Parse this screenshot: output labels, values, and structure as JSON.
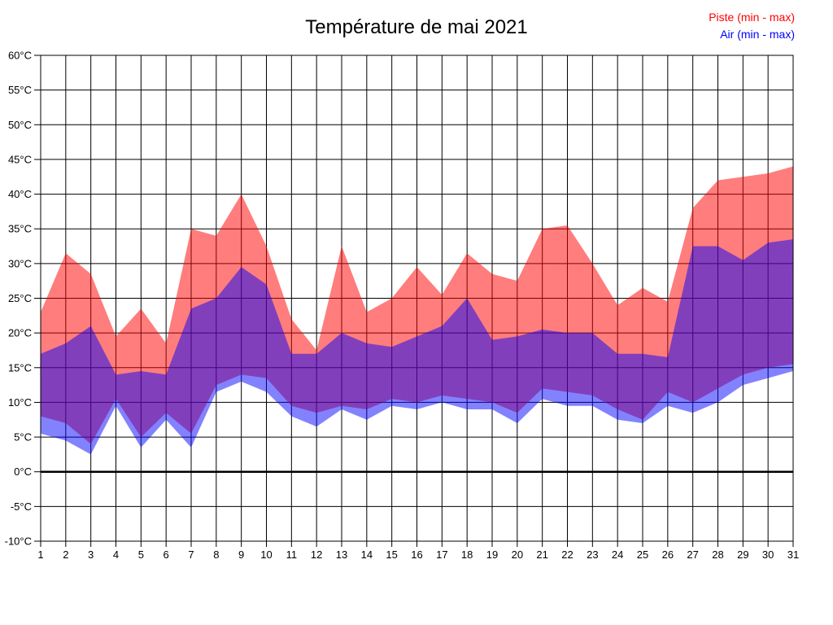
{
  "chart_data": {
    "type": "area",
    "title": "Température de mai 2021",
    "x": [
      1,
      2,
      3,
      4,
      5,
      6,
      7,
      8,
      9,
      10,
      11,
      12,
      13,
      14,
      15,
      16,
      17,
      18,
      19,
      20,
      21,
      22,
      23,
      24,
      25,
      26,
      27,
      28,
      29,
      30,
      31
    ],
    "ylim": [
      -10,
      60
    ],
    "ytick_step": 5,
    "ytick_suffix": "°C",
    "grid": true,
    "zero_line": true,
    "legend_position": "top-right",
    "series": [
      {
        "name": "Piste (min - max)",
        "color": "#ff0000",
        "fill": "rgba(255,0,0,0.51)",
        "min": [
          8,
          7,
          4,
          10.5,
          5,
          8.5,
          5.5,
          12.5,
          14,
          13.5,
          9.5,
          8.5,
          9.5,
          9,
          10.5,
          10,
          11,
          10.5,
          10,
          8.5,
          12,
          11.5,
          11,
          9,
          7.5,
          11.5,
          10,
          12,
          14,
          15,
          15.5
        ],
        "max": [
          23,
          31.5,
          28.5,
          19.5,
          23.5,
          18.5,
          35,
          34,
          40,
          32.5,
          22,
          17.5,
          32.5,
          23,
          25,
          29.5,
          25.5,
          31.5,
          28.5,
          27.5,
          35,
          35.5,
          30,
          24,
          26.5,
          24.5,
          38,
          42,
          42.5,
          43,
          44
        ]
      },
      {
        "name": "Air (min - max)",
        "color": "#0000ff",
        "fill": "rgba(0,0,255,0.49)",
        "min": [
          5.5,
          4.5,
          2.5,
          9.5,
          3.5,
          7.5,
          3.5,
          11.5,
          13,
          11.5,
          8,
          6.5,
          9,
          7.5,
          9.5,
          9,
          10,
          9,
          9,
          7,
          10.5,
          9.5,
          9.5,
          7.5,
          7,
          9.5,
          8.5,
          10,
          12.5,
          13.5,
          14.5
        ],
        "max": [
          17,
          18.5,
          21,
          14,
          14.5,
          14,
          23.5,
          25,
          29.5,
          27,
          17,
          17,
          20,
          18.5,
          18,
          19.5,
          21,
          25,
          19,
          19.5,
          20.5,
          20,
          20,
          17,
          17,
          16.5,
          32.5,
          32.5,
          30.5,
          33,
          33.5
        ]
      }
    ]
  }
}
